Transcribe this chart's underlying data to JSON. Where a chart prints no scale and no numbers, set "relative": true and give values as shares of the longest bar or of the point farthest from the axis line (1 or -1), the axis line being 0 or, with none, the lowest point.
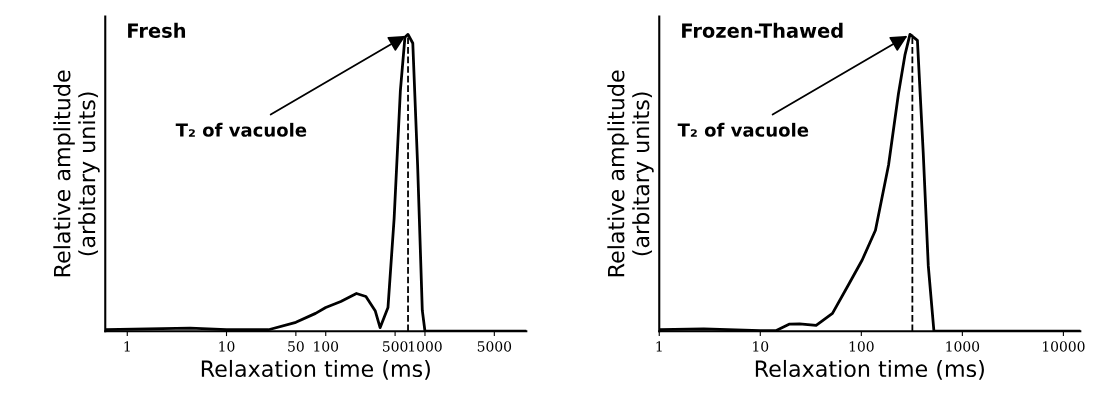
{
  "chart_data": [
    {
      "type": "line",
      "title": "Fresh",
      "xlabel": "Relaxation time (ms)",
      "ylabel": "Relative amplitude\n(arbitary units)",
      "log": "x",
      "relative": true,
      "xlim": [
        0.6,
        10500
      ],
      "xticks": [
        1,
        10,
        50,
        100,
        500,
        1000,
        5000
      ],
      "series": [
        {
          "color": "#000000",
          "x": [
            0.6,
            4.3,
            10,
            26.5,
            50,
            79,
            100,
            142,
            204,
            254,
            316,
            353,
            424,
            489,
            565,
            628,
            675,
            754,
            843,
            940,
            1000,
            10500
          ],
          "values": [
            0.005,
            0.01,
            0.005,
            0.005,
            0.03,
            0.06,
            0.08,
            0.1,
            0.127,
            0.117,
            0.068,
            0.012,
            0.08,
            0.38,
            0.81,
            0.99,
            1.0,
            0.97,
            0.56,
            0.07,
            0,
            0
          ]
        }
      ],
      "ref_lines": [
        {
          "axis": "x",
          "value": 675,
          "line_style": "dashed",
          "color": "#000000"
        }
      ],
      "annotations": [
        {
          "text": "T₂ of vacuole",
          "x": 675,
          "y": 1.0
        }
      ]
    },
    {
      "type": "line",
      "title": "Frozen-Thawed",
      "xlabel": "Relaxation time (ms)",
      "ylabel": "Relative amplitude\n(arbitary units)",
      "log": "x",
      "relative": true,
      "xlim": [
        1,
        14700
      ],
      "xticks": [
        1,
        10,
        100,
        1000,
        10000
      ],
      "series": [
        {
          "color": "#000000",
          "x": [
            1,
            2.76,
            10,
            14.4,
            19.5,
            24.5,
            35.7,
            51.8,
            75.6,
            102,
            138,
            186,
            233,
            270,
            303,
            359,
            410,
            460,
            523,
            14700
          ],
          "values": [
            0.005,
            0.008,
            0.002,
            0.002,
            0.024,
            0.025,
            0.02,
            0.06,
            0.16,
            0.24,
            0.34,
            0.56,
            0.8,
            0.93,
            1.0,
            0.98,
            0.6,
            0.22,
            0,
            0
          ]
        }
      ],
      "ref_lines": [
        {
          "axis": "x",
          "value": 320,
          "line_style": "dashed",
          "color": "#000000"
        }
      ],
      "annotations": [
        {
          "text": "T₂ of vacuole",
          "x": 303,
          "y": 1.0
        }
      ]
    }
  ]
}
